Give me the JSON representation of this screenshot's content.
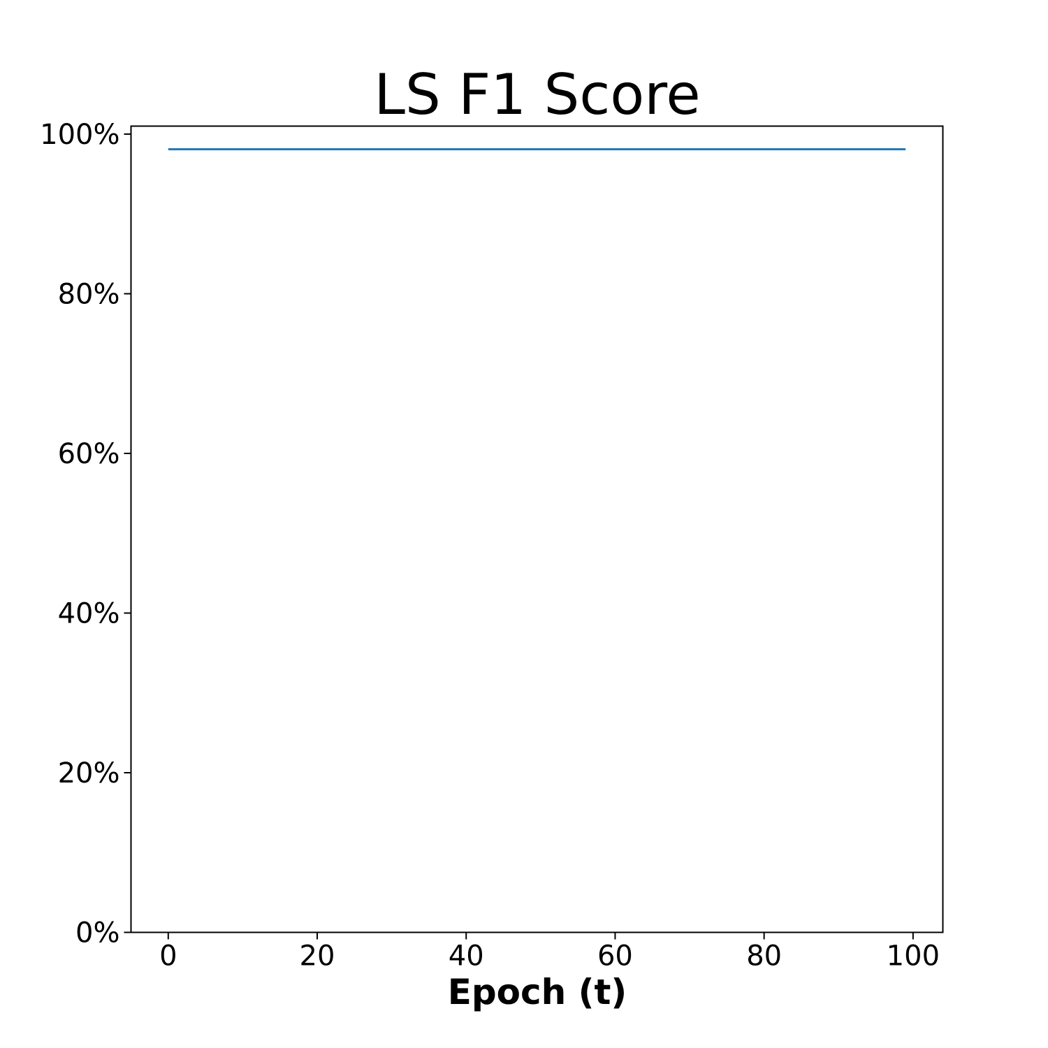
{
  "chart_data": {
    "type": "line",
    "title": "LS F1 Score",
    "xlabel": "Epoch (t)",
    "ylabel": "",
    "xlim": [
      -5,
      104
    ],
    "ylim": [
      0,
      1.01
    ],
    "x_ticks": [
      0,
      20,
      40,
      60,
      80,
      100
    ],
    "x_tick_labels": [
      "0",
      "20",
      "40",
      "60",
      "80",
      "100"
    ],
    "y_ticks": [
      0,
      0.2,
      0.4,
      0.6,
      0.8,
      1.0
    ],
    "y_tick_labels": [
      "0%",
      "20%",
      "40%",
      "60%",
      "80%",
      "100%"
    ],
    "grid": false,
    "series": [
      {
        "color": "#1f77b4",
        "x": [
          0,
          99
        ],
        "y": [
          0.981,
          0.981
        ]
      }
    ]
  }
}
